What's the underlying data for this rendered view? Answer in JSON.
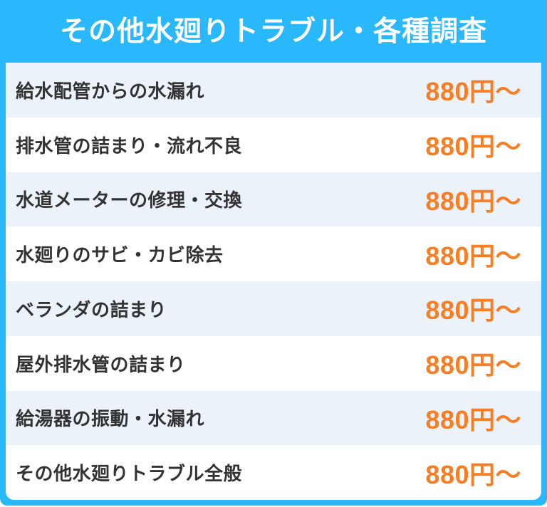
{
  "header": {
    "title": "その他水廻りトラブル・各種調査"
  },
  "table": {
    "rows": [
      {
        "label": "給水配管からの水漏れ",
        "price": "880円〜"
      },
      {
        "label": "排水管の詰まり・流れ不良",
        "price": "880円〜"
      },
      {
        "label": "水道メーターの修理・交換",
        "price": "880円〜"
      },
      {
        "label": "水廻りのサビ・カビ除去",
        "price": "880円〜"
      },
      {
        "label": "ベランダの詰まり",
        "price": "880円〜"
      },
      {
        "label": "屋外排水管の詰まり",
        "price": "880円〜"
      },
      {
        "label": "給湯器の振動・水漏れ",
        "price": "880円〜"
      },
      {
        "label": "その他水廻りトラブル全般",
        "price": "880円〜"
      }
    ]
  },
  "colors": {
    "header_bg": "#29b8fc",
    "header_text": "#ffffff",
    "row_alt_bg": "#ebf2fa",
    "row_bg": "#ffffff",
    "label_text": "#333333",
    "price_text": "#f77e24"
  }
}
